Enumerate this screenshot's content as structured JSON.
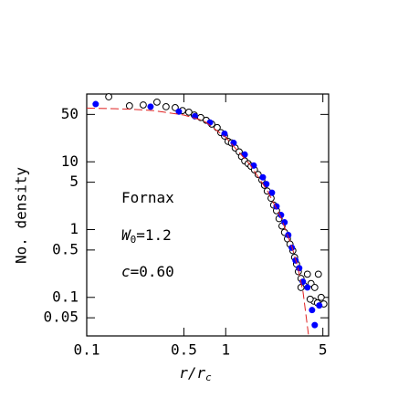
{
  "chart_data": {
    "type": "scatter",
    "xscale": "log",
    "yscale": "log",
    "xlabel": {
      "main": "r/r",
      "sub": "c"
    },
    "ylabel": "No. density",
    "annotations": [
      {
        "main": "Fornax"
      },
      {
        "main": "W",
        "sub": "0",
        "rest": "=1.2"
      },
      {
        "main": "c",
        "rest": "=0.60"
      }
    ],
    "xlim": [
      0.1,
      5.5
    ],
    "ylim": [
      0.027,
      100
    ],
    "xticks": [
      0.1,
      0.5,
      1,
      5
    ],
    "yticks": [
      0.05,
      0.1,
      0.5,
      1,
      5,
      10,
      50
    ],
    "series": [
      {
        "marker": "open",
        "color": "#000000",
        "x": [
          0.144,
          0.203,
          0.255,
          0.32,
          0.372,
          0.433,
          0.489,
          0.543,
          0.594,
          0.661,
          0.724,
          0.793,
          0.868,
          0.922,
          0.98,
          1.04,
          1.1,
          1.17,
          1.25,
          1.3,
          1.37,
          1.45,
          1.52,
          1.61,
          1.71,
          1.82,
          1.9,
          1.99,
          2.12,
          2.21,
          2.32,
          2.42,
          2.54,
          2.65,
          2.78,
          2.9,
          3.04,
          3.13,
          3.23,
          3.33,
          3.48,
          3.65,
          3.87,
          4.11,
          4.37,
          4.64,
          4.86,
          4.31,
          4.57,
          5.08,
          4.05,
          3.48
        ],
        "values": [
          91,
          67,
          69,
          76,
          65,
          63,
          57,
          54,
          49,
          45,
          41,
          36,
          32,
          27,
          24,
          20,
          19,
          16,
          14,
          12,
          10.3,
          9.4,
          8.6,
          7.6,
          6.5,
          5.4,
          4.5,
          3.7,
          2.9,
          2.3,
          1.9,
          1.45,
          1.13,
          0.91,
          0.73,
          0.61,
          0.49,
          0.39,
          0.31,
          0.24,
          0.19,
          0.15,
          0.22,
          0.16,
          0.14,
          0.22,
          0.1,
          0.088,
          0.083,
          0.08,
          0.094,
          0.14
        ]
      },
      {
        "marker": "filled",
        "color": "#0000ff",
        "x": [
          0.116,
          0.288,
          0.46,
          0.6,
          0.77,
          0.98,
          1.14,
          1.37,
          1.59,
          1.85,
          1.96,
          2.15,
          2.32,
          2.5,
          2.65,
          2.82,
          2.99,
          3.18,
          3.38,
          3.59,
          3.87,
          4.18,
          4.37,
          4.71
        ],
        "values": [
          71,
          65,
          55,
          47,
          38,
          26,
          19,
          12.8,
          8.8,
          5.9,
          4.7,
          3.5,
          2.2,
          1.64,
          1.28,
          0.83,
          0.54,
          0.35,
          0.27,
          0.17,
          0.14,
          0.065,
          0.039,
          0.076
        ]
      },
      {
        "marker": "line",
        "dash": true,
        "color": "#e02020",
        "x": [
          0.1,
          0.2,
          0.3,
          0.5,
          0.7,
          1,
          1.5,
          2,
          2.5,
          3,
          3.3,
          3.6,
          3.8,
          3.95
        ],
        "values": [
          62,
          60,
          57,
          49,
          40,
          23,
          9,
          3.7,
          1.5,
          0.55,
          0.28,
          0.12,
          0.05,
          0.027
        ]
      }
    ]
  }
}
